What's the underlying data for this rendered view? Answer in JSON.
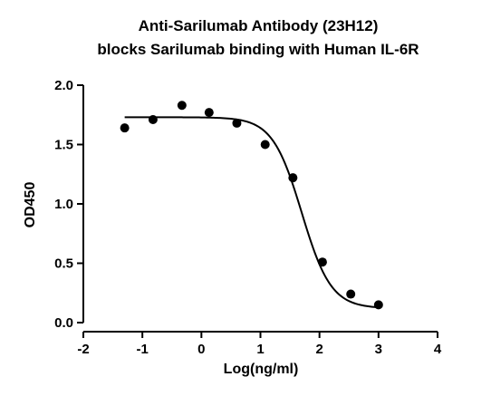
{
  "chart_data": {
    "type": "scatter",
    "title_lines": [
      "Anti-Sarilumab Antibody (23H12)",
      "blocks Sarilumab binding with Human IL-6R"
    ],
    "xlabel": "Log(ng/ml)",
    "ylabel": "OD450",
    "xlim": [
      -2,
      4
    ],
    "ylim": [
      0.0,
      2.0
    ],
    "x_ticks": [
      -2,
      -1,
      0,
      1,
      2,
      3,
      4
    ],
    "x_tick_labels": [
      "-2",
      "-1",
      "0",
      "1",
      "2",
      "3",
      "4"
    ],
    "y_ticks": [
      0.0,
      0.5,
      1.0,
      1.5,
      2.0
    ],
    "y_tick_labels": [
      "0.0",
      "0.5",
      "1.0",
      "1.5",
      "2.0"
    ],
    "grid": false,
    "series": [
      {
        "points": [
          {
            "x": -1.3,
            "y": 1.64
          },
          {
            "x": -0.82,
            "y": 1.71
          },
          {
            "x": -0.33,
            "y": 1.83
          },
          {
            "x": 0.13,
            "y": 1.77
          },
          {
            "x": 0.6,
            "y": 1.68
          },
          {
            "x": 1.08,
            "y": 1.5
          },
          {
            "x": 1.55,
            "y": 1.22
          },
          {
            "x": 2.05,
            "y": 0.51
          },
          {
            "x": 2.53,
            "y": 0.24
          },
          {
            "x": 3.0,
            "y": 0.15
          }
        ],
        "fit_curve": {
          "type": "four-parameter-logistic",
          "top": 1.73,
          "bottom": 0.12,
          "log_ic50": 1.7,
          "hill_slope": -1.75,
          "x_range": [
            -1.3,
            3.0
          ]
        },
        "color": "#000000"
      }
    ]
  }
}
